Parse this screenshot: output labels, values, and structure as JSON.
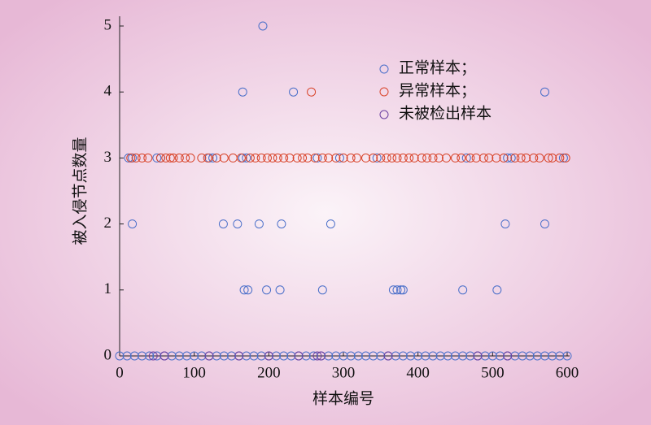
{
  "chart_data": {
    "type": "scatter",
    "xlabel": "样本编号",
    "ylabel": "被入侵节点数量",
    "xlim": [
      0,
      600
    ],
    "xticks": [
      0,
      100,
      200,
      300,
      400,
      500,
      600
    ],
    "ylim": [
      0,
      5
    ],
    "yticks": [
      0,
      1,
      2,
      3,
      4,
      5
    ],
    "legend": "upper-right",
    "series": [
      {
        "name": "正常样本；",
        "color": "#4a6fc9",
        "x": [
          0,
          10,
          20,
          30,
          40,
          50,
          60,
          70,
          80,
          90,
          100,
          110,
          120,
          130,
          140,
          150,
          160,
          170,
          180,
          190,
          200,
          210,
          220,
          230,
          240,
          250,
          260,
          270,
          280,
          290,
          300,
          310,
          320,
          330,
          340,
          350,
          360,
          370,
          380,
          390,
          400,
          410,
          420,
          430,
          440,
          450,
          460,
          470,
          480,
          490,
          500,
          510,
          520,
          530,
          540,
          550,
          560,
          570,
          580,
          590,
          600,
          192,
          165,
          233,
          570,
          17,
          139,
          158,
          187,
          217,
          283,
          517,
          570,
          167,
          172,
          197,
          215,
          272,
          367,
          372,
          377,
          380,
          460,
          506,
          12,
          17,
          50,
          55,
          120,
          125,
          165,
          170,
          265,
          295,
          345,
          465,
          520,
          525,
          595
        ],
        "values": [
          0,
          0,
          0,
          0,
          0,
          0,
          0,
          0,
          0,
          0,
          0,
          0,
          0,
          0,
          0,
          0,
          0,
          0,
          0,
          0,
          0,
          0,
          0,
          0,
          0,
          0,
          0,
          0,
          0,
          0,
          0,
          0,
          0,
          0,
          0,
          0,
          0,
          0,
          0,
          0,
          0,
          0,
          0,
          0,
          0,
          0,
          0,
          0,
          0,
          0,
          0,
          0,
          0,
          0,
          0,
          0,
          0,
          0,
          0,
          0,
          0,
          5,
          4,
          4,
          4,
          2,
          2,
          2,
          2,
          2,
          2,
          2,
          2,
          1,
          1,
          1,
          1,
          1,
          1,
          1,
          1,
          1,
          1,
          1,
          3,
          3,
          3,
          3,
          3,
          3,
          3,
          3,
          3,
          3,
          3,
          3,
          3,
          3,
          3
        ]
      },
      {
        "name": "异常样本；",
        "color": "#d9452b",
        "x": [
          15,
          22,
          30,
          38,
          55,
          62,
          68,
          72,
          80,
          88,
          95,
          110,
          118,
          130,
          140,
          152,
          163,
          175,
          182,
          190,
          198,
          205,
          212,
          220,
          228,
          238,
          245,
          252,
          262,
          272,
          280,
          290,
          300,
          310,
          318,
          330,
          340,
          350,
          358,
          365,
          372,
          380,
          388,
          395,
          405,
          412,
          420,
          428,
          438,
          450,
          458,
          470,
          478,
          488,
          495,
          505,
          515,
          530,
          538,
          545,
          555,
          563,
          575,
          580,
          590,
          598,
          257
        ],
        "values": [
          3,
          3,
          3,
          3,
          3,
          3,
          3,
          3,
          3,
          3,
          3,
          3,
          3,
          3,
          3,
          3,
          3,
          3,
          3,
          3,
          3,
          3,
          3,
          3,
          3,
          3,
          3,
          3,
          3,
          3,
          3,
          3,
          3,
          3,
          3,
          3,
          3,
          3,
          3,
          3,
          3,
          3,
          3,
          3,
          3,
          3,
          3,
          3,
          3,
          3,
          3,
          3,
          3,
          3,
          3,
          3,
          3,
          3,
          3,
          3,
          3,
          3,
          3,
          3,
          3,
          3,
          4
        ]
      },
      {
        "name": "未被检出样本",
        "color": "#6b3fa0",
        "x": [
          45,
          60,
          120,
          160,
          200,
          240,
          265,
          270,
          360,
          480,
          520
        ],
        "values": [
          0,
          0,
          0,
          0,
          0,
          0,
          0,
          0,
          0,
          0,
          0
        ]
      }
    ]
  }
}
